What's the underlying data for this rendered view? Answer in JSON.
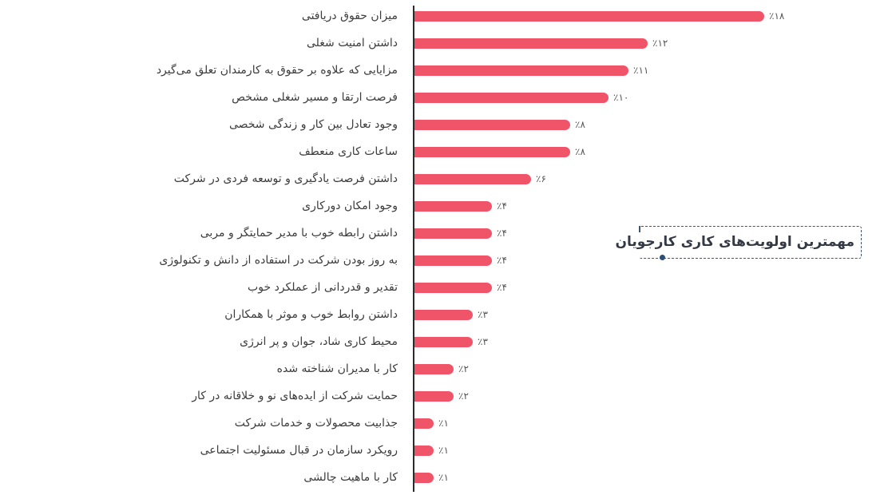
{
  "colors": {
    "bar": "#ef5468",
    "axis": "#2b2b2b",
    "title_border": "#3e5470",
    "title_dot": "#2a4f7a"
  },
  "title": "مهمترین اولویت‌های کاری کارجویان",
  "rows": [
    {
      "label": "میزان حقوق دریافتی",
      "value_text": "٪۱۸",
      "value": 18
    },
    {
      "label": "داشتن امنیت شغلی",
      "value_text": "٪۱۲",
      "value": 12
    },
    {
      "label": "مزایایی که علاوه بر حقوق به کارمندان تعلق می‌گیرد",
      "value_text": "٪۱۱",
      "value": 11
    },
    {
      "label": "فرصت ارتقا و مسیر شغلی مشخص",
      "value_text": "٪۱۰",
      "value": 10
    },
    {
      "label": "وجود تعادل بین کار و زندگی شخصی",
      "value_text": "٪۸",
      "value": 8
    },
    {
      "label": "ساعات کاری منعطف",
      "value_text": "٪۸",
      "value": 8
    },
    {
      "label": "داشتن فرصت یادگیری و توسعه فردی در شرکت",
      "value_text": "٪۶",
      "value": 6
    },
    {
      "label": "وجود امکان دورکاری",
      "value_text": "٪۴",
      "value": 4
    },
    {
      "label": "داشتن رابطه خوب با مدیر حمایتگر و مربی",
      "value_text": "٪۴",
      "value": 4
    },
    {
      "label": "به روز بودن شرکت در استفاده از دانش و تکنولوژی",
      "value_text": "٪۴",
      "value": 4
    },
    {
      "label": "تقدیر و قدردانی از عملکرد خوب",
      "value_text": "٪۴",
      "value": 4
    },
    {
      "label": "داشتن روابط خوب و موثر با همکاران",
      "value_text": "٪۳",
      "value": 3
    },
    {
      "label": "محیط کاری شاد، جوان و پر انرژی",
      "value_text": "٪۳",
      "value": 3
    },
    {
      "label": "کار با مدیران شناخته شده",
      "value_text": "٪۲",
      "value": 2
    },
    {
      "label": "حمایت شرکت از ایده‌های نو و خلاقانه در کار",
      "value_text": "٪۲",
      "value": 2
    },
    {
      "label": "جذابیت محصولات و خدمات شرکت",
      "value_text": "٪۱",
      "value": 1
    },
    {
      "label": "رویکرد سازمان در قبال مسئولیت اجتماعی",
      "value_text": "٪۱",
      "value": 1
    },
    {
      "label": "کار با ماهیت چالشی",
      "value_text": "٪۱",
      "value": 1
    }
  ],
  "chart_data": {
    "type": "bar",
    "orientation": "horizontal",
    "title": "مهمترین اولویت‌های کاری کارجویان",
    "xlabel": "",
    "ylabel": "",
    "unit": "%",
    "grid": false,
    "legend": null,
    "categories": [
      "میزان حقوق دریافتی",
      "داشتن امنیت شغلی",
      "مزایایی که علاوه بر حقوق به کارمندان تعلق می‌گیرد",
      "فرصت ارتقا و مسیر شغلی مشخص",
      "وجود تعادل بین کار و زندگی شخصی",
      "ساعات کاری منعطف",
      "داشتن فرصت یادگیری و توسعه فردی در شرکت",
      "وجود امکان دورکاری",
      "داشتن رابطه خوب با مدیر حمایتگر و مربی",
      "به روز بودن شرکت در استفاده از دانش و تکنولوژی",
      "تقدیر و قدردانی از عملکرد خوب",
      "داشتن روابط خوب و موثر با همکاران",
      "محیط کاری شاد، جوان و پر انرژی",
      "کار با مدیران شناخته شده",
      "حمایت شرکت از ایده‌های نو و خلاقانه در کار",
      "جذابیت محصولات و خدمات شرکت",
      "رویکرد سازمان در قبال مسئولیت اجتماعی",
      "کار با ماهیت چالشی"
    ],
    "values": [
      18,
      12,
      11,
      10,
      8,
      8,
      6,
      4,
      4,
      4,
      4,
      3,
      3,
      2,
      2,
      1,
      1,
      1
    ],
    "data_labels": [
      "٪۱۸",
      "٪۱۲",
      "٪۱۱",
      "٪۱۰",
      "٪۸",
      "٪۸",
      "٪۶",
      "٪۴",
      "٪۴",
      "٪۴",
      "٪۴",
      "٪۳",
      "٪۳",
      "٪۲",
      "٪۲",
      "٪۱",
      "٪۱",
      "٪۱"
    ],
    "xlim": [
      0,
      18
    ],
    "bar_color": "#ef5468"
  }
}
